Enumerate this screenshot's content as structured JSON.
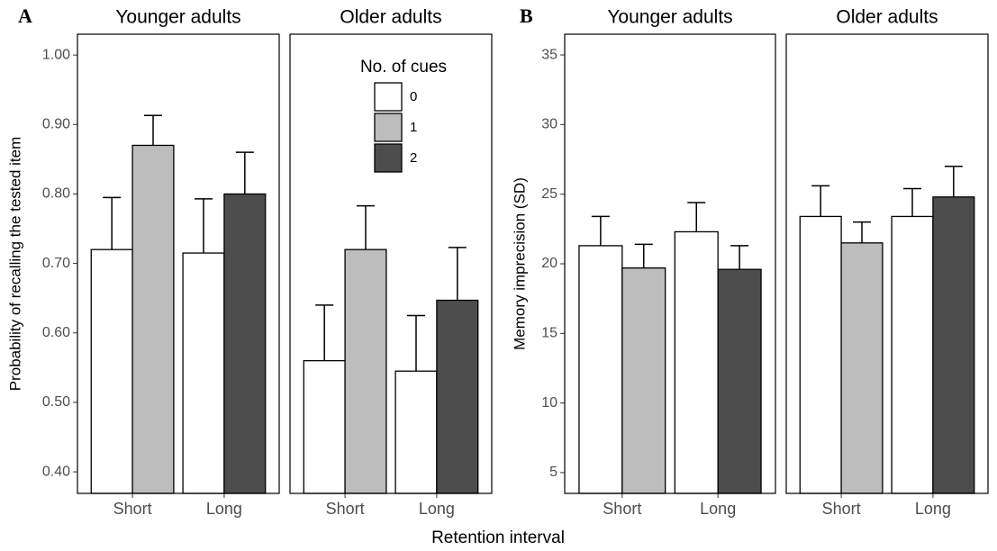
{
  "x_label": "Retention interval",
  "chart_data": [
    {
      "type": "bar",
      "panel_label": "A",
      "y_label": "Probability of recalling the tested item",
      "ylim": [
        0.369,
        1.03
      ],
      "yticks": [
        {
          "value": 0.4,
          "label": "0.40"
        },
        {
          "value": 0.5,
          "label": "0.50"
        },
        {
          "value": 0.6,
          "label": "0.60"
        },
        {
          "value": 0.7,
          "label": "0.70"
        },
        {
          "value": 0.8,
          "label": "0.80"
        },
        {
          "value": 0.9,
          "label": "0.90"
        },
        {
          "value": 1.0,
          "label": "1.00"
        }
      ],
      "legend_title": "No. of cues",
      "facets": [
        {
          "title": "Younger adults",
          "categories": [
            "Short",
            "Long"
          ],
          "series": [
            {
              "name": "0",
              "color": "#ffffff",
              "values": [
                0.72,
                0.715
              ],
              "errors": [
                0.075,
                0.078
              ]
            },
            {
              "name": "1",
              "color": "#bdbdbd",
              "values": [
                0.87,
                null
              ],
              "errors": [
                0.043,
                null
              ]
            },
            {
              "name": "2",
              "color": "#4d4d4d",
              "values": [
                null,
                0.8
              ],
              "errors": [
                null,
                0.06
              ]
            }
          ]
        },
        {
          "title": "Older adults",
          "categories": [
            "Short",
            "Long"
          ],
          "series": [
            {
              "name": "0",
              "color": "#ffffff",
              "values": [
                0.56,
                0.545
              ],
              "errors": [
                0.08,
                0.08
              ]
            },
            {
              "name": "1",
              "color": "#bdbdbd",
              "values": [
                0.72,
                null
              ],
              "errors": [
                0.063,
                null
              ]
            },
            {
              "name": "2",
              "color": "#4d4d4d",
              "values": [
                null,
                0.647
              ],
              "errors": [
                null,
                0.076
              ]
            }
          ]
        }
      ]
    },
    {
      "type": "bar",
      "panel_label": "B",
      "y_label": "Memory imprecision (SD)",
      "ylim": [
        3.51,
        36.49
      ],
      "yticks": [
        5,
        10,
        15,
        20,
        25,
        30,
        35
      ],
      "facets": [
        {
          "title": "Younger adults",
          "categories": [
            "Short",
            "Long"
          ],
          "series": [
            {
              "name": "0",
              "color": "#ffffff",
              "values": [
                21.3,
                22.3
              ],
              "errors": [
                2.1,
                2.1
              ]
            },
            {
              "name": "1",
              "color": "#bdbdbd",
              "values": [
                19.7,
                null
              ],
              "errors": [
                1.7,
                null
              ]
            },
            {
              "name": "2",
              "color": "#4d4d4d",
              "values": [
                null,
                19.6
              ],
              "errors": [
                null,
                1.7
              ]
            }
          ]
        },
        {
          "title": "Older adults",
          "categories": [
            "Short",
            "Long"
          ],
          "series": [
            {
              "name": "0",
              "color": "#ffffff",
              "values": [
                23.4,
                23.4
              ],
              "errors": [
                2.2,
                2.0
              ]
            },
            {
              "name": "1",
              "color": "#bdbdbd",
              "values": [
                21.5,
                null
              ],
              "errors": [
                1.5,
                null
              ]
            },
            {
              "name": "2",
              "color": "#4d4d4d",
              "values": [
                null,
                24.8
              ],
              "errors": [
                null,
                2.2
              ]
            }
          ]
        }
      ]
    }
  ]
}
